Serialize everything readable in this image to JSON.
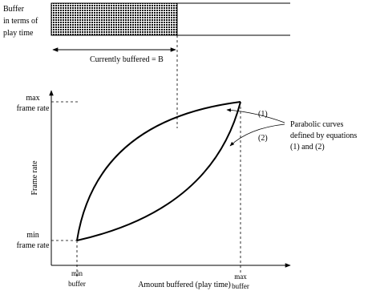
{
  "buffer_bar": {
    "label_lines": [
      "Buffer",
      "in terms of",
      "play time"
    ],
    "currently_buffered_label": "Currently buffered = B"
  },
  "graph": {
    "y_axis_label": "Frame rate",
    "x_axis_label": "Amount buffered (play time)",
    "max_frame_rate_lines": [
      "max",
      "frame rate"
    ],
    "min_frame_rate_lines": [
      "min",
      "frame rate"
    ],
    "min_buffer_lines": [
      "min",
      "buffer"
    ],
    "max_buffer_lines": [
      "max",
      "buffer"
    ],
    "curve_labels": [
      "(1)",
      "(2)"
    ],
    "annotation_lines": [
      "Parabolic curves",
      "defined by equations",
      "(1) and (2)"
    ]
  }
}
